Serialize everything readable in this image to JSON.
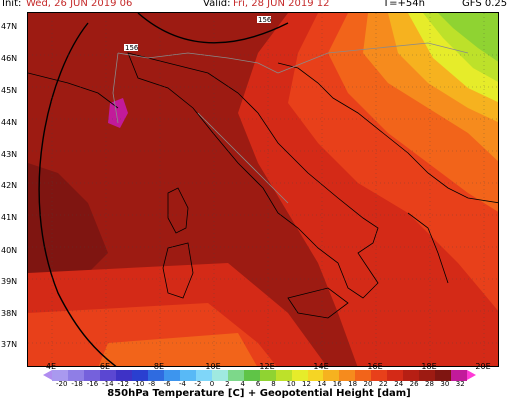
{
  "header": {
    "init_label": "Init:",
    "init_value": "Wed, 26 JUN 2019  06",
    "valid_label": "Valid:",
    "valid_value": "Fri, 28 JUN 2019  12",
    "lead": "T=+54h",
    "model": "GFS 0.25"
  },
  "map": {
    "latitude_labels": [
      "47N",
      "46N",
      "45N",
      "44N",
      "43N",
      "42N",
      "41N",
      "40N",
      "39N",
      "38N",
      "37N"
    ],
    "longitude_labels": [
      "4E",
      "6E",
      "8E",
      "10E",
      "12E",
      "14E",
      "16E",
      "18E",
      "20E"
    ],
    "contour_labels": [
      "156",
      "156"
    ]
  },
  "legend": {
    "ticks": [
      "-20",
      "-18",
      "-16",
      "-14",
      "-12",
      "-10",
      "-8",
      "-6",
      "-4",
      "-2",
      "0",
      "2",
      "4",
      "6",
      "8",
      "10",
      "12",
      "14",
      "16",
      "18",
      "20",
      "22",
      "24",
      "26",
      "28",
      "30",
      "32"
    ],
    "colors": [
      "#c4b6f7",
      "#a999ef",
      "#8f7ee6",
      "#7561dc",
      "#5b47d2",
      "#3e32c6",
      "#2a3fd0",
      "#2f6be0",
      "#3d95ee",
      "#58b9f6",
      "#7fd6f9",
      "#9fe9e0",
      "#7dd88a",
      "#5fc447",
      "#8fd332",
      "#bde12a",
      "#e6ec2a",
      "#f5d524",
      "#f6b21f",
      "#f68b1d",
      "#f2641a",
      "#e8401a",
      "#d42a17",
      "#b61f14",
      "#9d1b12",
      "#7f1511",
      "#c21a9a",
      "#ff3ad6"
    ],
    "caption": "850hPa Temperature [C] + Geopotential Height [dam]"
  }
}
